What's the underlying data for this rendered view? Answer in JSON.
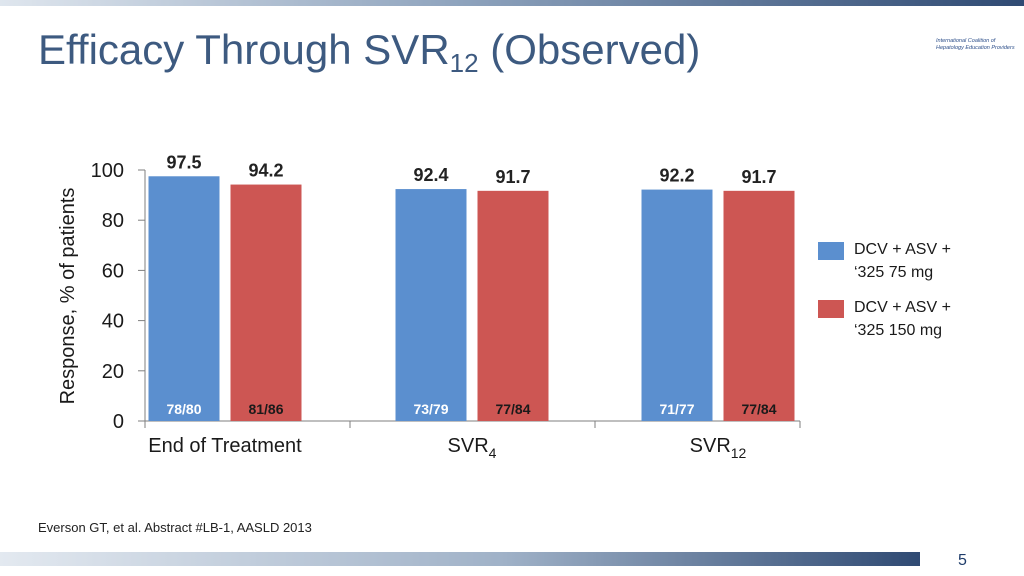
{
  "slide": {
    "title": {
      "text": "Efficacy Through SVR",
      "sub": "12",
      "suffix": " (Observed)"
    },
    "org_logo": "International Coalition of Hepatology Education Providers",
    "footnote": "Everson GT, et al. Abstract #LB-1, AASLD 2013",
    "page_number": "5"
  },
  "colors": {
    "series_1": "#5b8fcf",
    "series_2": "#cd5653"
  },
  "chart_data": {
    "type": "bar",
    "ylabel": "Response, % of patients",
    "xlabel": "",
    "ylim": [
      0,
      100
    ],
    "yticks": [
      "0",
      "20",
      "40",
      "60",
      "80",
      "100"
    ],
    "grid": false,
    "legend_position": "right",
    "categories": [
      {
        "main": "End of Treatment",
        "sub": ""
      },
      {
        "main": "SVR",
        "sub": "4"
      },
      {
        "main": "SVR",
        "sub": "12"
      }
    ],
    "series": [
      {
        "name": "DCV + ASV +\n‘325 75 mg",
        "values": [
          97.5,
          92.4,
          92.2
        ],
        "value_labels": [
          "97.5",
          "92.4",
          "92.2"
        ],
        "counts": [
          "78/80",
          "73/79",
          "71/77"
        ]
      },
      {
        "name": "DCV +  ASV +\n‘325 150 mg",
        "values": [
          94.2,
          91.7,
          91.7
        ],
        "value_labels": [
          "94.2",
          "91.7",
          "91.7"
        ],
        "counts": [
          "81/86",
          "77/84",
          "77/84"
        ]
      }
    ]
  }
}
